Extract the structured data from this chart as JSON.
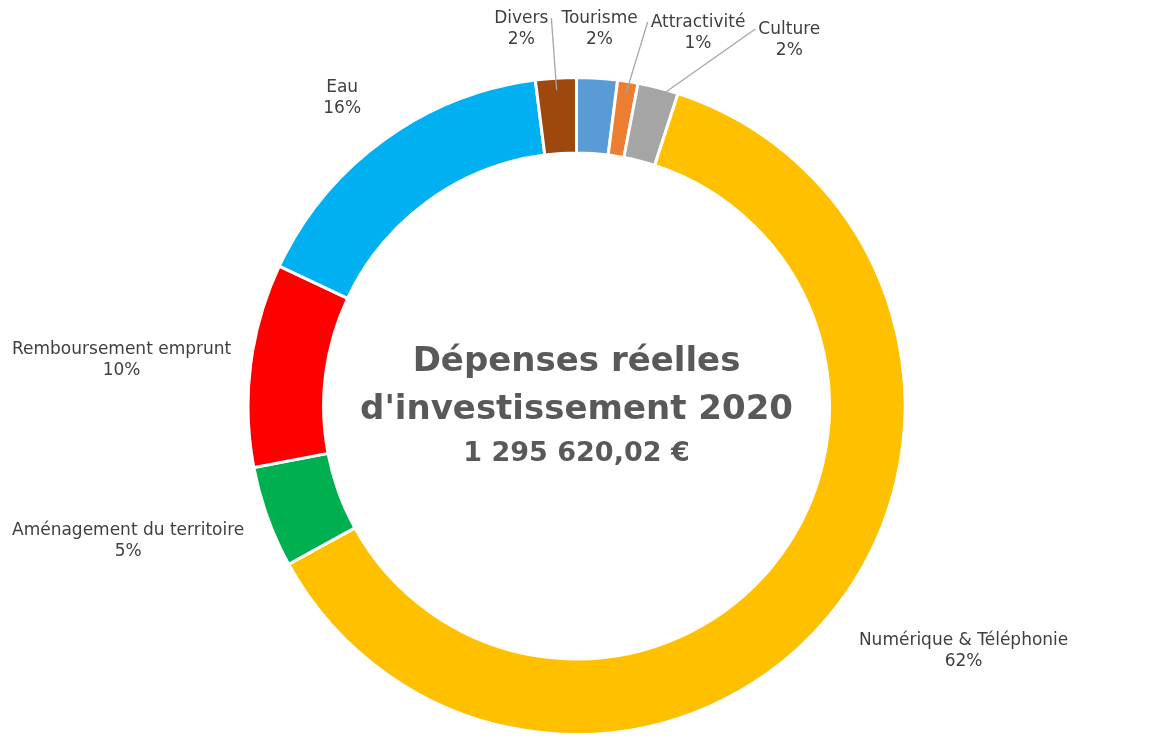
{
  "chart_data": {
    "type": "donut",
    "title": "Dépenses réelles d'investissement 2020",
    "subtitle": "1 295 620,02 €",
    "categories": [
      "Tourisme",
      "Attractivité",
      "Culture",
      "Numérique & Téléphonie",
      "Aménagement du territoire",
      "Remboursement emprunt",
      "Eau",
      "Divers"
    ],
    "values": [
      2,
      1,
      2,
      62,
      5,
      10,
      16,
      2
    ],
    "value_labels": [
      "2%",
      "1%",
      "2%",
      "62%",
      "5%",
      "10%",
      "16%",
      "2%"
    ],
    "colors": [
      "#5b9bd5",
      "#ed7d31",
      "#a5a5a5",
      "#ffc000",
      "#00b050",
      "#ff0000",
      "#00b0f0",
      "#9e480e"
    ],
    "legend": false
  }
}
